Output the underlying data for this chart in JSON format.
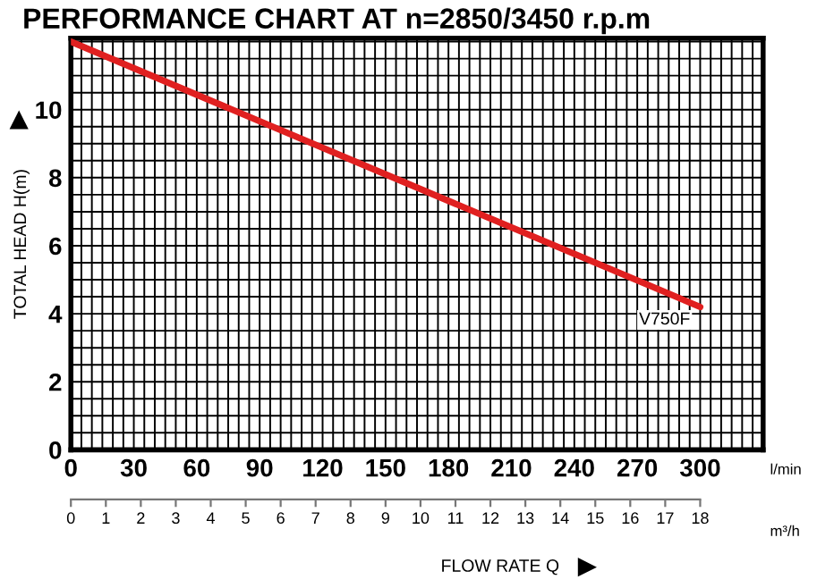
{
  "chart_data": {
    "type": "line",
    "title": "PERFORMANCE CHART AT n=2850/3450 r.p.m",
    "xlabel": "l/min",
    "x2label": "m³/h",
    "ylabel": "TOTAL HEAD H(m)",
    "annotations": [
      "FLOW RATE Q"
    ],
    "series": [
      {
        "name": "V750F",
        "color": "#e02020",
        "x": [
          0,
          300
        ],
        "values": [
          12,
          4.2
        ]
      }
    ],
    "xlim": [
      0,
      330
    ],
    "xticks": [
      0,
      30,
      60,
      90,
      120,
      150,
      180,
      210,
      240,
      270,
      300
    ],
    "x2lim": [
      0,
      19.8
    ],
    "x2ticks": [
      0,
      1,
      2,
      3,
      4,
      5,
      6,
      7,
      8,
      9,
      10,
      11,
      12,
      13,
      14,
      15,
      16,
      17,
      18
    ],
    "ylim": [
      0,
      12.1
    ],
    "yticks": [
      0,
      2,
      4,
      6,
      8,
      10
    ],
    "grid": true,
    "marker": "none",
    "line_style": "solid"
  }
}
